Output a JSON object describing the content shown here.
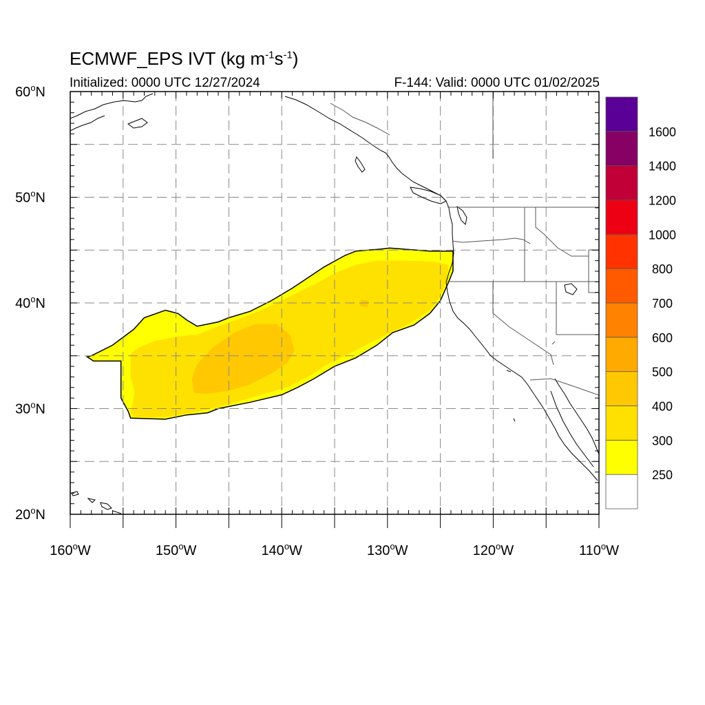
{
  "title": {
    "model": "ECMWF_EPS IVT (kg m",
    "exp1": "-1",
    "mid": "s",
    "exp2": "-1",
    "close": ")"
  },
  "initialized": "Initialized: 0000 UTC 12/27/2024",
  "valid": "F-144: Valid: 0000 UTC 01/02/2025",
  "map": {
    "lon_range": [
      -160,
      -110
    ],
    "lat_range": [
      20,
      60
    ],
    "grid": "dashed every 5 degrees",
    "lat_labels": [
      {
        "lat": 60,
        "deg": "60",
        "hemi": "N"
      },
      {
        "lat": 50,
        "deg": "50",
        "hemi": "N"
      },
      {
        "lat": 40,
        "deg": "40",
        "hemi": "N"
      },
      {
        "lat": 30,
        "deg": "30",
        "hemi": "N"
      },
      {
        "lat": 20,
        "deg": "20",
        "hemi": "N"
      }
    ],
    "lon_labels": [
      {
        "lon": -160,
        "deg": "160",
        "hemi": "W"
      },
      {
        "lon": -150,
        "deg": "150",
        "hemi": "W"
      },
      {
        "lon": -140,
        "deg": "140",
        "hemi": "W"
      },
      {
        "lon": -130,
        "deg": "130",
        "hemi": "W"
      },
      {
        "lon": -120,
        "deg": "120",
        "hemi": "W"
      },
      {
        "lon": -110,
        "deg": "110",
        "hemi": "W"
      }
    ]
  },
  "colorbar": {
    "colors": [
      "#ffffff",
      "#ffff00",
      "#ffe100",
      "#ffc800",
      "#ffaa00",
      "#ff8200",
      "#ff5a00",
      "#ff3200",
      "#ee0014",
      "#c00037",
      "#870064",
      "#5a0096"
    ],
    "labels": [
      "250",
      "300",
      "400",
      "500",
      "600",
      "700",
      "800",
      "1000",
      "1200",
      "1400",
      "1600"
    ]
  },
  "ivt_regions": [
    {
      "level": "250-300",
      "color": "#ffff00",
      "points": [
        [
          -154.5,
          29.7
        ],
        [
          -154.3,
          29.1
        ],
        [
          -151.0,
          29.0
        ],
        [
          -149.0,
          29.4
        ],
        [
          -147.0,
          29.6
        ],
        [
          -146.0,
          30.0
        ],
        [
          -143.0,
          30.6
        ],
        [
          -140.0,
          31.3
        ],
        [
          -138.5,
          32.0
        ],
        [
          -137.0,
          32.8
        ],
        [
          -135.0,
          34.0
        ],
        [
          -133.0,
          34.8
        ],
        [
          -131.0,
          36.0
        ],
        [
          -129.5,
          37.2
        ],
        [
          -127.5,
          37.9
        ],
        [
          -126.0,
          39.0
        ],
        [
          -125.0,
          40.2
        ],
        [
          -124.3,
          41.8
        ],
        [
          -123.8,
          43.0
        ],
        [
          -123.8,
          44.9
        ],
        [
          -126.0,
          44.9
        ],
        [
          -129.8,
          45.2
        ],
        [
          -130.6,
          45.1
        ],
        [
          -133.0,
          44.9
        ],
        [
          -134.0,
          44.5
        ],
        [
          -136.0,
          43.4
        ],
        [
          -137.8,
          42.2
        ],
        [
          -139.0,
          41.4
        ],
        [
          -141.0,
          40.2
        ],
        [
          -143.0,
          39.2
        ],
        [
          -145.0,
          38.6
        ],
        [
          -146.0,
          38.2
        ],
        [
          -148.0,
          37.8
        ],
        [
          -149.0,
          38.4
        ],
        [
          -149.8,
          39.0
        ],
        [
          -151.0,
          39.3
        ],
        [
          -153.0,
          38.6
        ],
        [
          -154.0,
          37.5
        ],
        [
          -156.0,
          36.0
        ],
        [
          -158.0,
          35.0
        ],
        [
          -158.4,
          34.9
        ],
        [
          -157.8,
          34.5
        ],
        [
          -155.2,
          34.5
        ],
        [
          -155.2,
          31.0
        ]
      ]
    },
    {
      "level": "300-400",
      "color": "#ffe100",
      "points": [
        [
          -154.3,
          29.6
        ],
        [
          -153.8,
          29.2
        ],
        [
          -151.0,
          29.2
        ],
        [
          -148.0,
          29.7
        ],
        [
          -145.0,
          30.4
        ],
        [
          -142.0,
          31.3
        ],
        [
          -139.5,
          32.0
        ],
        [
          -137.5,
          33.0
        ],
        [
          -136.0,
          34.0
        ],
        [
          -134.0,
          35.0
        ],
        [
          -132.5,
          35.8
        ],
        [
          -130.5,
          36.8
        ],
        [
          -128.0,
          38.0
        ],
        [
          -126.0,
          39.3
        ],
        [
          -125.0,
          40.6
        ],
        [
          -124.4,
          42.2
        ],
        [
          -124.2,
          43.6
        ],
        [
          -125.5,
          43.9
        ],
        [
          -128.0,
          44.0
        ],
        [
          -131.0,
          44.0
        ],
        [
          -133.0,
          43.6
        ],
        [
          -135.0,
          42.8
        ],
        [
          -137.0,
          41.7
        ],
        [
          -139.5,
          40.5
        ],
        [
          -141.5,
          39.5
        ],
        [
          -144.0,
          38.5
        ],
        [
          -146.0,
          37.8
        ],
        [
          -148.0,
          37.0
        ],
        [
          -150.0,
          36.8
        ],
        [
          -152.0,
          36.4
        ],
        [
          -153.5,
          35.8
        ],
        [
          -154.3,
          35.2
        ],
        [
          -154.3,
          33.0
        ],
        [
          -153.9,
          31.5
        ]
      ]
    },
    {
      "level": "400-500",
      "color": "#ffc800",
      "points": [
        [
          -148.3,
          31.5
        ],
        [
          -147.0,
          31.4
        ],
        [
          -145.0,
          31.7
        ],
        [
          -143.0,
          32.3
        ],
        [
          -141.0,
          33.3
        ],
        [
          -139.5,
          34.3
        ],
        [
          -138.8,
          35.5
        ],
        [
          -139.2,
          37.0
        ],
        [
          -140.5,
          38.0
        ],
        [
          -142.5,
          38.0
        ],
        [
          -144.5,
          37.2
        ],
        [
          -146.5,
          35.8
        ],
        [
          -148.0,
          34.2
        ],
        [
          -148.5,
          32.8
        ]
      ]
    },
    {
      "level": "400-500",
      "color": "#ffc800",
      "points": [
        [
          -132.6,
          39.7
        ],
        [
          -131.9,
          39.6
        ],
        [
          -131.8,
          40.2
        ],
        [
          -132.5,
          40.3
        ]
      ]
    }
  ]
}
